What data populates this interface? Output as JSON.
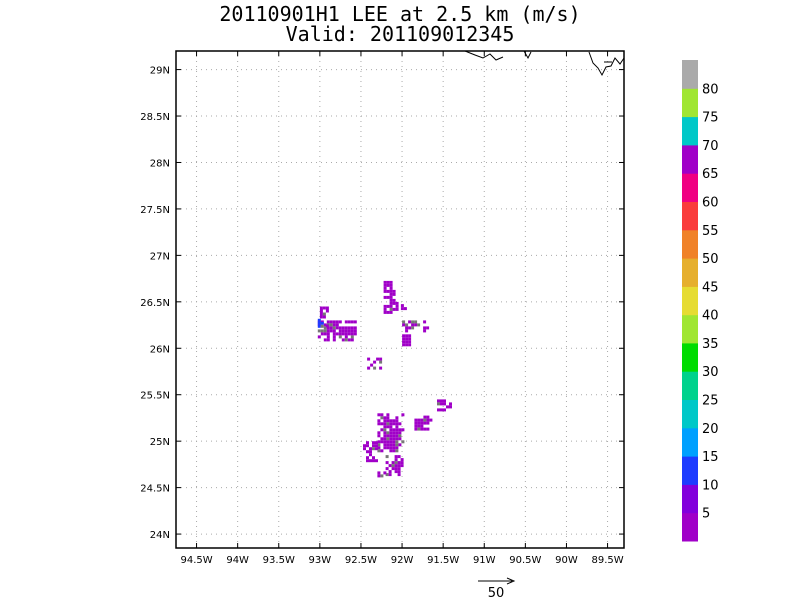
{
  "title": {
    "line1": "20110901H1 LEE at 2.5 km (m/s)",
    "line2": "Valid: 201109012345"
  },
  "axes": {
    "lat_labels": [
      "29N",
      "28.5N",
      "28N",
      "27.5N",
      "27N",
      "26.5N",
      "26N",
      "25.5N",
      "25N",
      "24.5N",
      "24N"
    ],
    "lat_values": [
      29,
      28.5,
      28,
      27.5,
      27,
      26.5,
      26,
      25.5,
      25,
      24.5,
      24
    ],
    "lon_labels": [
      "94.5W",
      "94W",
      "93.5W",
      "93W",
      "92.5W",
      "92W",
      "91.5W",
      "91W",
      "90.5W",
      "90W",
      "89.5W"
    ],
    "lon_values": [
      -94.5,
      -94,
      -93.5,
      -93,
      -92.5,
      -92,
      -91.5,
      -91,
      -90.5,
      -90,
      -89.5
    ],
    "lon_range": [
      -94.75,
      -89.3
    ],
    "lat_range": [
      23.85,
      29.2
    ],
    "grid": "dotted"
  },
  "colorbar": {
    "labels": [
      "5",
      "10",
      "15",
      "20",
      "25",
      "30",
      "35",
      "40",
      "45",
      "50",
      "55",
      "60",
      "65",
      "70",
      "75",
      "80"
    ],
    "colors": [
      "#a000c8",
      "#8200dc",
      "#1e3cff",
      "#00a0ff",
      "#00c8c8",
      "#00d28c",
      "#00dc00",
      "#a0e632",
      "#e6dc32",
      "#e6af2d",
      "#f08228",
      "#fa3c3c",
      "#f00082",
      "#a000c8",
      "#00c8c8",
      "#a0e632",
      "#aaaaaa"
    ]
  },
  "vector_reference": {
    "label": "50"
  },
  "wind_clusters": [
    {
      "lon": -92.15,
      "lat": 26.55,
      "w": 0.15,
      "h": 0.35,
      "color": "#a000c8"
    },
    {
      "lon": -92.8,
      "lat": 26.2,
      "w": 0.45,
      "h": 0.2,
      "color": "#a000c8"
    },
    {
      "lon": -92.95,
      "lat": 26.35,
      "w": 0.1,
      "h": 0.2,
      "color": "#a000c8"
    },
    {
      "lon": -92.35,
      "lat": 25.85,
      "w": 0.15,
      "h": 0.1,
      "color": "#a000c8"
    },
    {
      "lon": -91.85,
      "lat": 26.25,
      "w": 0.3,
      "h": 0.1,
      "color": "#a000c8"
    },
    {
      "lon": -91.95,
      "lat": 26.1,
      "w": 0.1,
      "h": 0.1,
      "color": "#a000c8"
    },
    {
      "lon": -92.0,
      "lat": 26.45,
      "w": 0.1,
      "h": 0.05,
      "color": "#a000c8"
    },
    {
      "lon": -92.15,
      "lat": 25.1,
      "w": 0.3,
      "h": 0.4,
      "color": "#a000c8"
    },
    {
      "lon": -92.1,
      "lat": 24.75,
      "w": 0.2,
      "h": 0.2,
      "color": "#a000c8"
    },
    {
      "lon": -92.4,
      "lat": 24.9,
      "w": 0.15,
      "h": 0.2,
      "color": "#a000c8"
    },
    {
      "lon": -91.75,
      "lat": 25.2,
      "w": 0.2,
      "h": 0.15,
      "color": "#a000c8"
    },
    {
      "lon": -91.5,
      "lat": 25.4,
      "w": 0.15,
      "h": 0.1,
      "color": "#a000c8"
    },
    {
      "lon": -92.25,
      "lat": 24.65,
      "w": 0.1,
      "h": 0.05,
      "color": "#a000c8"
    },
    {
      "lon": -93.0,
      "lat": 26.3,
      "w": 0.05,
      "h": 0.1,
      "color": "#1e3cff"
    }
  ]
}
